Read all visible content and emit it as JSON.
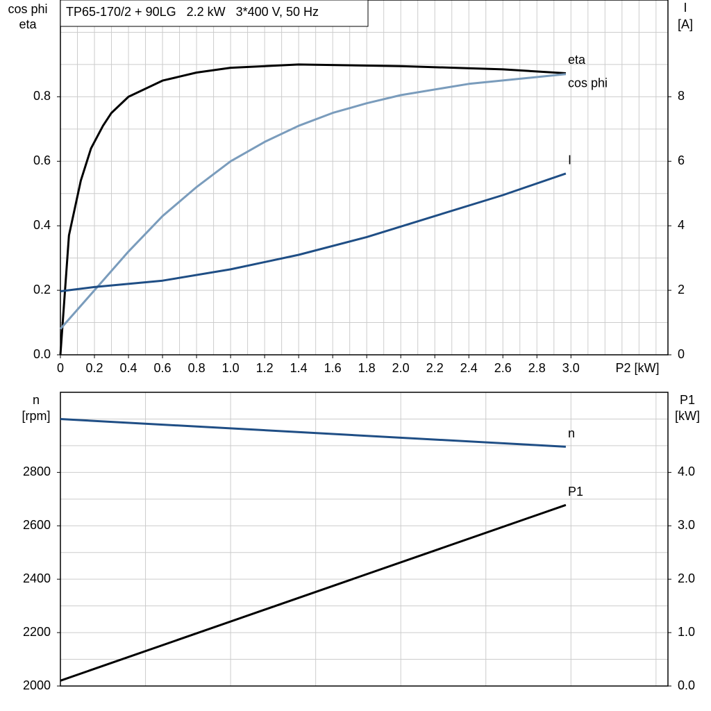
{
  "chart_data": [
    {
      "type": "line",
      "title": "TP65-170/2 + 90LG   2.2 kW   3*400 V, 50 Hz",
      "y_label": [
        "cos phi",
        "eta"
      ],
      "y2_label": [
        "I",
        "[A]"
      ],
      "x_label": "P2 [kW]",
      "xlim": [
        0,
        3.57
      ],
      "ylim": [
        0,
        1.1
      ],
      "y2lim": [
        0,
        11
      ],
      "xticks": [
        {
          "value": 0,
          "label": "0"
        },
        0.2,
        0.4,
        0.6,
        0.8,
        {
          "value": 1,
          "label": "1.0"
        },
        1.2,
        1.4,
        1.6,
        1.8,
        {
          "value": 2,
          "label": "2.0"
        },
        2.2,
        2.4,
        2.6,
        2.8,
        {
          "value": 3,
          "label": "3.0"
        }
      ],
      "yticks": [
        {
          "value": 0,
          "label": "0.0"
        },
        0.2,
        0.4,
        0.6,
        0.8
      ],
      "y2ticks": [
        0,
        2,
        4,
        6,
        8
      ],
      "grid": true,
      "grid_step": {
        "x": 0.1,
        "y": 0.1
      },
      "series": [
        {
          "name": "eta",
          "color": "#000000",
          "axis": "y",
          "x": [
            0,
            0.05,
            0.12,
            0.18,
            0.25,
            0.3,
            0.4,
            0.6,
            0.8,
            1.0,
            1.4,
            2.0,
            2.6,
            2.97
          ],
          "values": [
            0,
            0.37,
            0.54,
            0.64,
            0.71,
            0.75,
            0.8,
            0.85,
            0.875,
            0.89,
            0.9,
            0.895,
            0.885,
            0.873
          ]
        },
        {
          "name": "cos phi",
          "color": "#7a9cbc",
          "axis": "y",
          "x": [
            0,
            0.2,
            0.4,
            0.6,
            0.8,
            1.0,
            1.2,
            1.4,
            1.6,
            1.8,
            2.0,
            2.4,
            2.97
          ],
          "values": [
            0.08,
            0.2,
            0.32,
            0.43,
            0.52,
            0.6,
            0.66,
            0.71,
            0.75,
            0.78,
            0.805,
            0.84,
            0.87
          ]
        },
        {
          "name": "I",
          "color": "#1f4e85",
          "axis": "y2",
          "x": [
            0,
            0.2,
            0.6,
            1.0,
            1.4,
            1.8,
            2.2,
            2.6,
            2.97
          ],
          "values": [
            1.97,
            2.1,
            2.3,
            2.65,
            3.1,
            3.65,
            4.3,
            4.95,
            5.62
          ]
        }
      ]
    },
    {
      "type": "line",
      "y_label": [
        "n",
        "[rpm]"
      ],
      "y2_label": [
        "P1",
        "[kW]"
      ],
      "xlim": [
        0,
        3.57
      ],
      "ylim": [
        2000,
        3100
      ],
      "y2lim": [
        0,
        5.5
      ],
      "yticks": [
        2000,
        2200,
        2400,
        2600,
        2800
      ],
      "y2ticks": [
        {
          "value": 0,
          "label": "0.0"
        },
        {
          "value": 1,
          "label": "1.0"
        },
        {
          "value": 2,
          "label": "2.0"
        },
        {
          "value": 3,
          "label": "3.0"
        },
        {
          "value": 4,
          "label": "4.0"
        }
      ],
      "grid": true,
      "grid_step": {
        "x": 0.5,
        "y": 100
      },
      "series": [
        {
          "name": "n",
          "color": "#1f4e85",
          "axis": "y",
          "x": [
            0,
            2.97
          ],
          "values": [
            3000,
            2896
          ]
        },
        {
          "name": "P1",
          "color": "#000000",
          "axis": "y2",
          "x": [
            0,
            2.97
          ],
          "values": [
            0.1,
            3.39
          ]
        }
      ]
    }
  ]
}
